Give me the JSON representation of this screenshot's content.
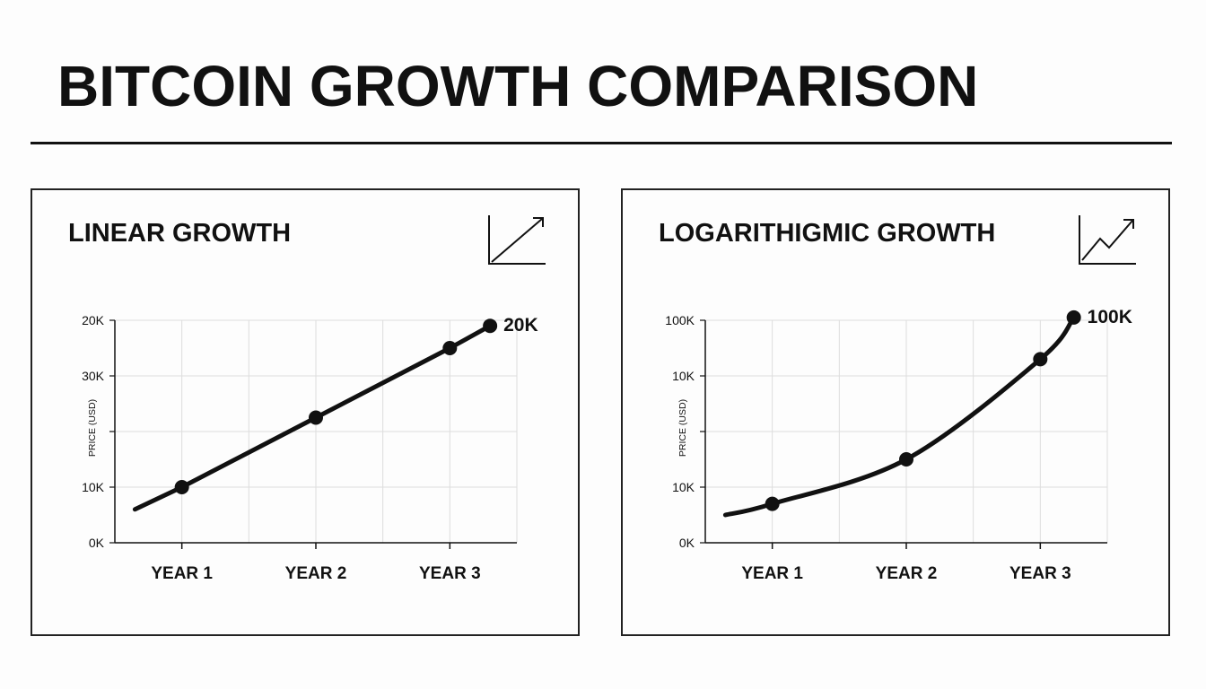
{
  "page": {
    "title": "BITCOIN GROWTH COMPARISON"
  },
  "colors": {
    "ink": "#111111",
    "grid": "#dddddd",
    "background": "#fdfdfd"
  },
  "panels": [
    {
      "id": "linear",
      "title": "LINEAR GROWTH",
      "icon": "trend-arrow-icon"
    },
    {
      "id": "log",
      "title": "LOGARITHIGMIC GROWTH",
      "icon": "zigzag-trend-arrow-icon"
    }
  ],
  "chart_data": [
    {
      "type": "line",
      "title": "LINEAR GROWTH",
      "xlabel": "",
      "ylabel": "PRICE (USD)",
      "x_ticks": [
        "YEAR 1",
        "YEAR 2",
        "YEAR 3"
      ],
      "y_ticks": [
        "0K",
        "10K",
        "",
        "30K",
        "20K"
      ],
      "grid": true,
      "series": [
        {
          "x": [
            0.65,
            1.0,
            2.0,
            3.0,
            3.3
          ],
          "y": [
            0.6,
            1.0,
            2.25,
            3.5,
            3.9
          ]
        }
      ],
      "markers_at": [
        1.0,
        2.0,
        3.0,
        3.3
      ],
      "annotations": [
        {
          "text": "20K",
          "at_x": 3.3
        }
      ]
    },
    {
      "type": "line",
      "title": "LOGARITHIGMIC GROWTH",
      "xlabel": "",
      "ylabel": "PRICE (USD)",
      "x_ticks": [
        "YEAR 1",
        "YEAR 2",
        "YEAR 3"
      ],
      "y_ticks": [
        "0K",
        "10K",
        "",
        "10K",
        "100K"
      ],
      "grid": true,
      "series": [
        {
          "x": [
            0.65,
            1.0,
            2.0,
            3.0,
            3.25
          ],
          "y": [
            0.5,
            0.7,
            1.5,
            3.3,
            4.05
          ]
        }
      ],
      "markers_at": [
        1.0,
        2.0,
        3.0,
        3.25
      ],
      "annotations": [
        {
          "text": "100K",
          "at_x": 3.25
        }
      ]
    }
  ]
}
